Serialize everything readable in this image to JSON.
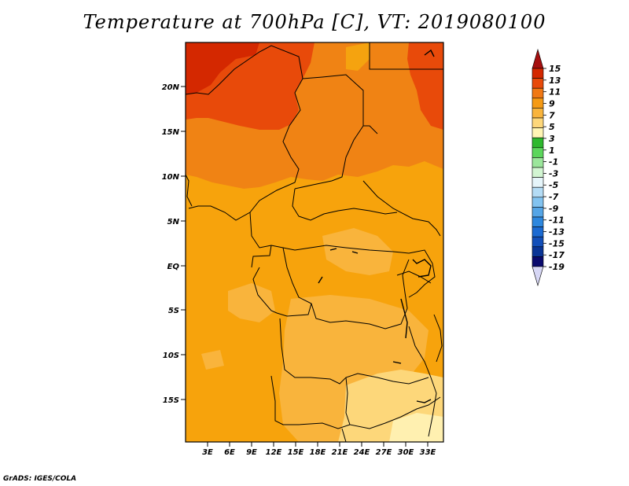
{
  "title": "Temperature at 700hPa [C], VT: 2019080100",
  "credit": "GrADS: IGES/COLA",
  "map": {
    "lat_labels": [
      "20N",
      "15N",
      "10N",
      "5N",
      "EQ",
      "5S",
      "10S",
      "15S"
    ],
    "lon_labels": [
      "3E",
      "6E",
      "9E",
      "12E",
      "15E",
      "18E",
      "21E",
      "24E",
      "27E",
      "30E",
      "33E"
    ]
  },
  "colorbar": {
    "labels": [
      "15",
      "13",
      "11",
      "9",
      "7",
      "5",
      "3",
      "1",
      "-1",
      "-3",
      "-5",
      "-7",
      "-9",
      "-11",
      "-13",
      "-15",
      "-17",
      "-19"
    ],
    "colors": [
      "#a50f0f",
      "#d42800",
      "#e84a0a",
      "#f07814",
      "#f59a14",
      "#f9b43c",
      "#fdd77a",
      "#fff5b4",
      "#2eb82e",
      "#5cd65c",
      "#9be69b",
      "#d2f5d2",
      "#e6f5fa",
      "#b4dcf5",
      "#82c3f0",
      "#55a5e6",
      "#2d87de",
      "#1b6ad2",
      "#124fb9",
      "#0a3596",
      "#0a0a6e",
      "#d7d7f5"
    ]
  }
}
